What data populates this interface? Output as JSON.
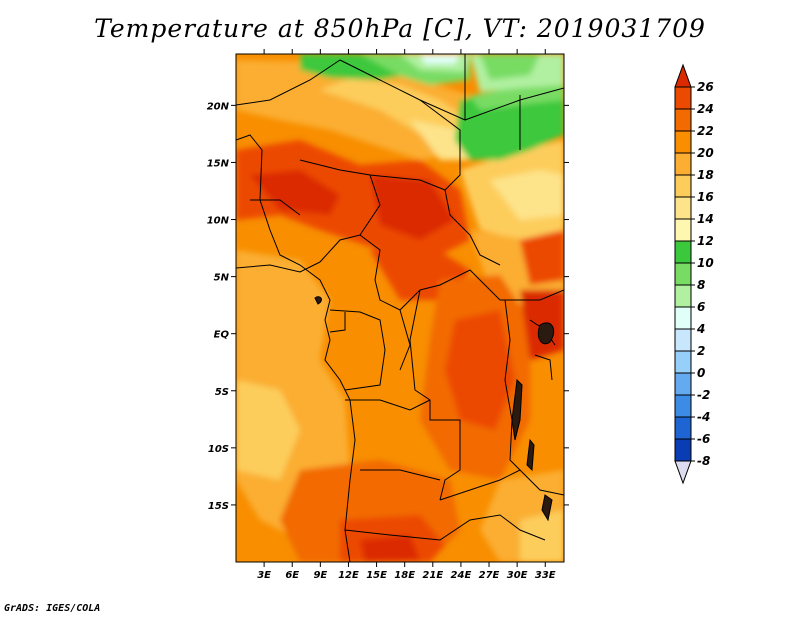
{
  "title": "Temperature at 850hPa [C], VT: 2019031709",
  "credit": "GrADS: IGES/COLA",
  "map": {
    "lon_range": [
      0,
      35
    ],
    "lat_range": [
      -20,
      24.5
    ],
    "lat_ticks": [
      {
        "value": 20,
        "label": "20N"
      },
      {
        "value": 15,
        "label": "15N"
      },
      {
        "value": 10,
        "label": "10N"
      },
      {
        "value": 5,
        "label": "5N"
      },
      {
        "value": 0,
        "label": "EQ"
      },
      {
        "value": -5,
        "label": "5S"
      },
      {
        "value": -10,
        "label": "10S"
      },
      {
        "value": -15,
        "label": "15S"
      }
    ],
    "lon_ticks": [
      {
        "value": 3,
        "label": "3E"
      },
      {
        "value": 6,
        "label": "6E"
      },
      {
        "value": 9,
        "label": "9E"
      },
      {
        "value": 12,
        "label": "12E"
      },
      {
        "value": 15,
        "label": "15E"
      },
      {
        "value": 18,
        "label": "18E"
      },
      {
        "value": 21,
        "label": "21E"
      },
      {
        "value": 24,
        "label": "24E"
      },
      {
        "value": 27,
        "label": "27E"
      },
      {
        "value": 30,
        "label": "30E"
      },
      {
        "value": 33,
        "label": "33E"
      }
    ]
  },
  "colorbar": {
    "levels": [
      "26",
      "24",
      "22",
      "20",
      "18",
      "16",
      "14",
      "12",
      "10",
      "8",
      "6",
      "4",
      "2",
      "0",
      "-2",
      "-4",
      "-6",
      "-8"
    ],
    "colors": [
      "#db2a00",
      "#ec4a00",
      "#f26a00",
      "#f88e00",
      "#fbae32",
      "#fdcd5c",
      "#fde38a",
      "#fff6b0",
      "#3cc83c",
      "#78dc64",
      "#b0f0a0",
      "#e0fff8",
      "#c8e6fc",
      "#96d0fa",
      "#64aaf0",
      "#3c8ce6",
      "#1e64d2",
      "#0a3cb4",
      "#0a1e78",
      "#dcdcf0"
    ]
  }
}
